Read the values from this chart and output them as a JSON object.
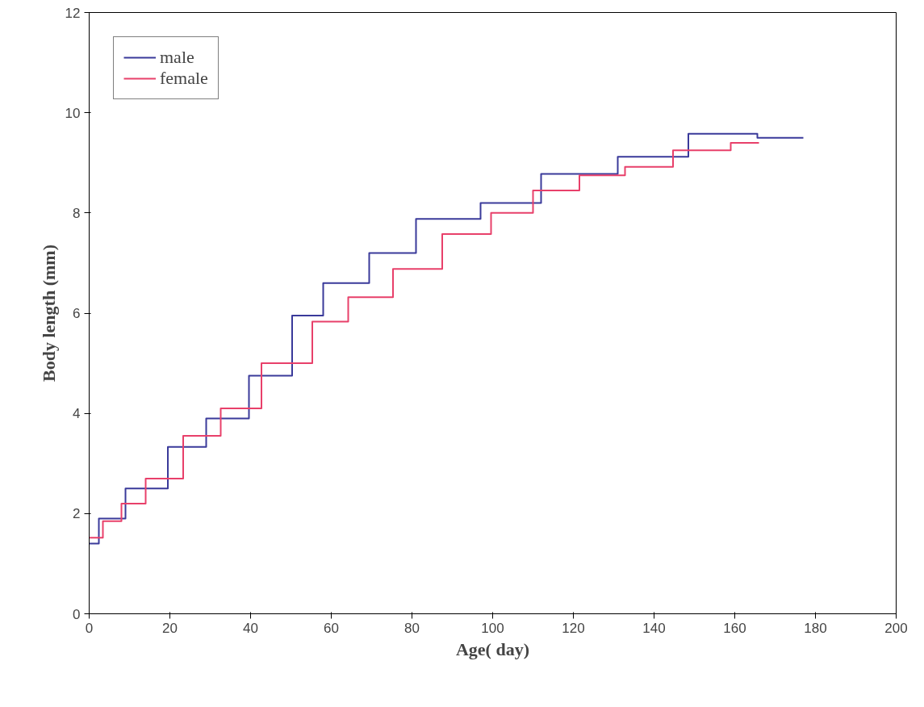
{
  "chart_data": {
    "type": "step",
    "xlabel": "Age( day)",
    "ylabel": "Body length (mm)",
    "xlim": [
      0,
      200
    ],
    "ylim": [
      0,
      12
    ],
    "xticks": [
      0,
      20,
      40,
      60,
      80,
      100,
      120,
      140,
      160,
      180,
      200
    ],
    "yticks": [
      0,
      2,
      4,
      6,
      8,
      10,
      12
    ],
    "grid": false,
    "legend": "top left",
    "series": [
      {
        "name": "male",
        "color": "#3a3a9a",
        "x": [
          0,
          2.4,
          9,
          19.5,
          29,
          39.6,
          50.3,
          58,
          69.4,
          81,
          97,
          112,
          131,
          148.5,
          165.6,
          177
        ],
        "values": [
          1.4,
          1.9,
          2.5,
          3.33,
          3.9,
          4.75,
          5.95,
          6.6,
          7.2,
          7.88,
          8.2,
          8.78,
          9.12,
          9.58,
          9.5,
          9.5
        ]
      },
      {
        "name": "female",
        "color": "#e8406a",
        "x": [
          0,
          3.4,
          8,
          14,
          23.3,
          32.6,
          42.7,
          55.3,
          64.2,
          75.3,
          87.5,
          99.6,
          110,
          121.5,
          132.8,
          144.7,
          159,
          166
        ],
        "values": [
          1.52,
          1.85,
          2.2,
          2.7,
          3.55,
          4.1,
          5.0,
          5.83,
          6.32,
          6.88,
          7.58,
          8.0,
          8.45,
          8.75,
          8.92,
          9.25,
          9.4,
          9.4
        ]
      }
    ]
  }
}
